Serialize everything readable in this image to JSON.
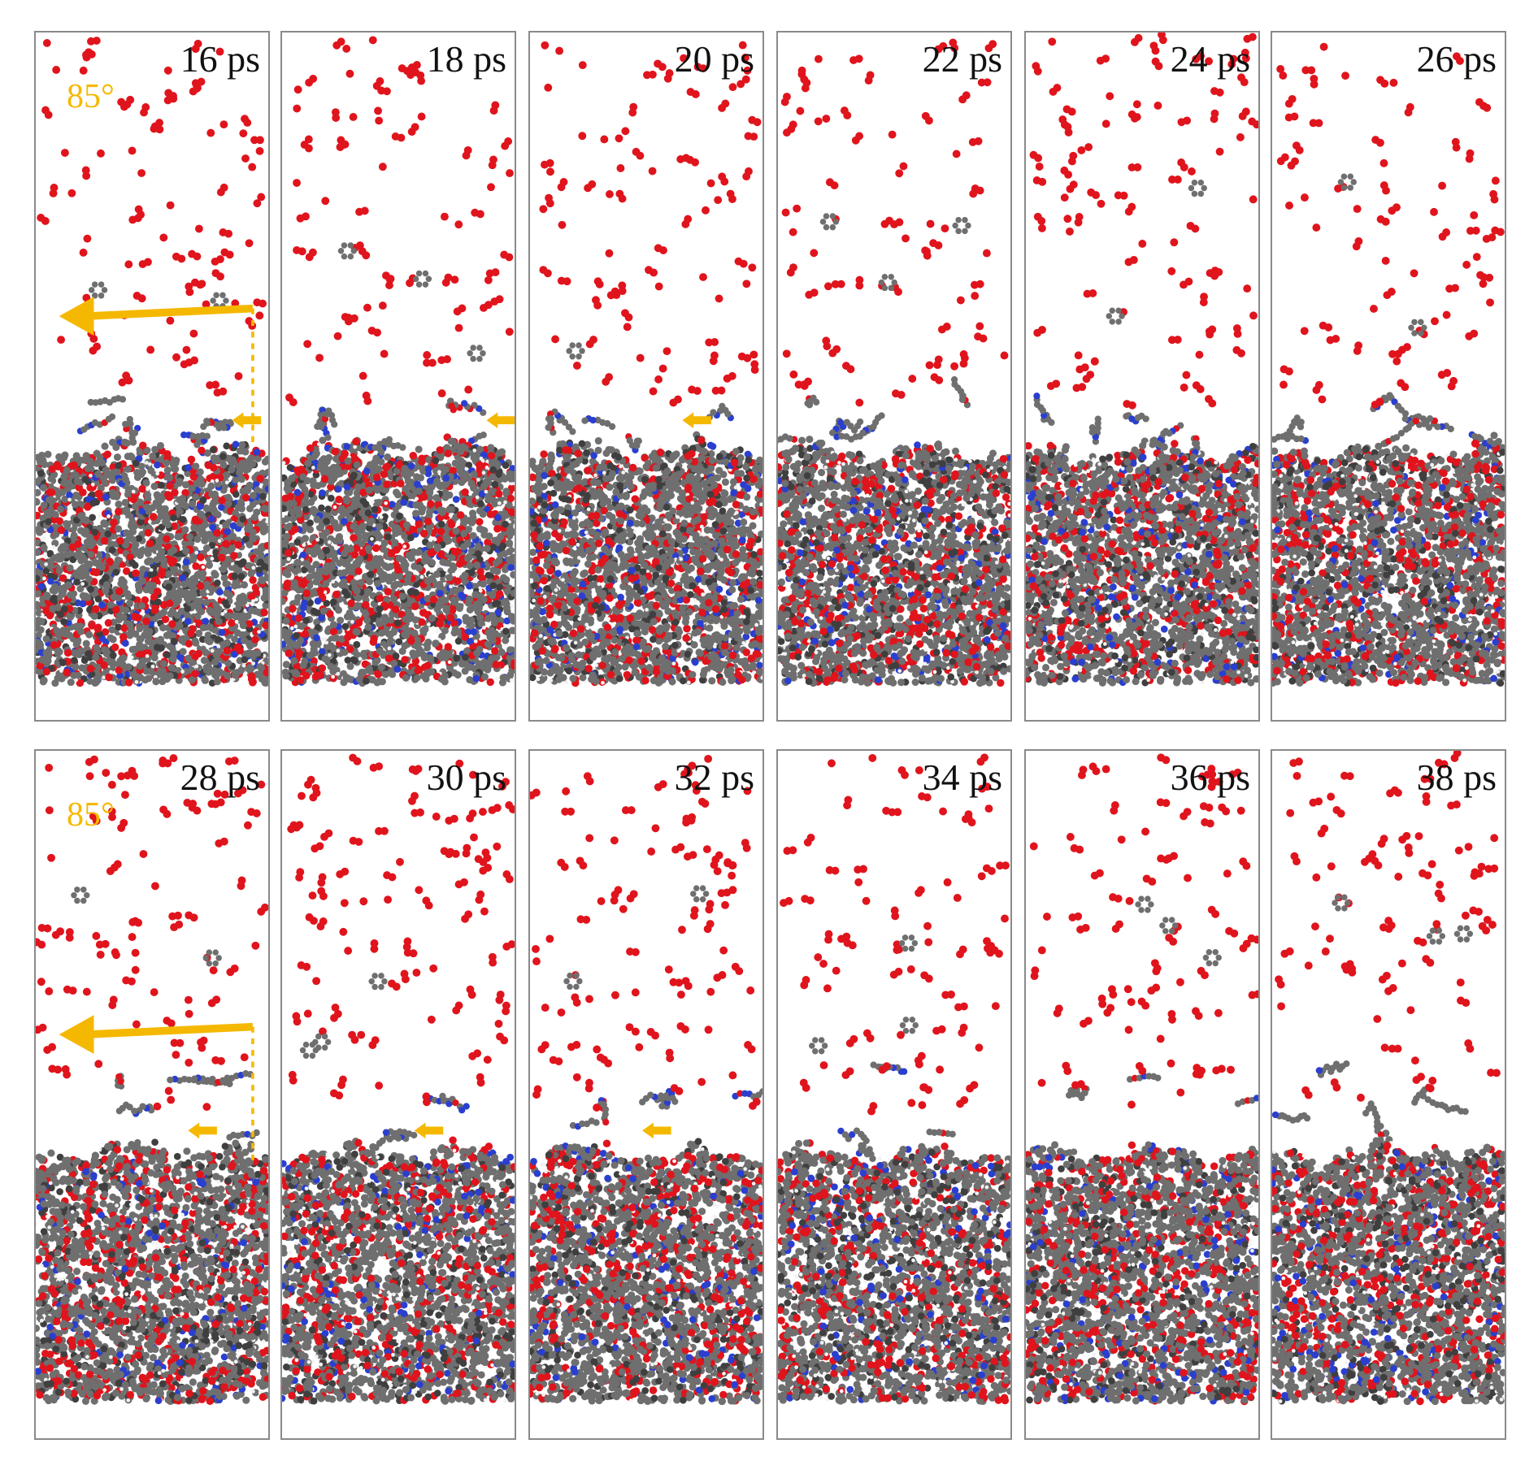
{
  "figure": {
    "rows": [
      {
        "angle_label": "85°",
        "frames": [
          {
            "time_label": "16 ps",
            "ejection_arrow": true
          },
          {
            "time_label": "18 ps",
            "ejection_arrow": true
          },
          {
            "time_label": "20 ps",
            "ejection_arrow": true
          },
          {
            "time_label": "22 ps",
            "ejection_arrow": false
          },
          {
            "time_label": "24 ps",
            "ejection_arrow": false
          },
          {
            "time_label": "26 ps",
            "ejection_arrow": false
          }
        ]
      },
      {
        "angle_label": "85°",
        "frames": [
          {
            "time_label": "28 ps",
            "ejection_arrow": true
          },
          {
            "time_label": "30 ps",
            "ejection_arrow": true
          },
          {
            "time_label": "32 ps",
            "ejection_arrow": true
          },
          {
            "time_label": "34 ps",
            "ejection_arrow": false
          },
          {
            "time_label": "36 ps",
            "ejection_arrow": false
          },
          {
            "time_label": "38 ps",
            "ejection_arrow": false
          }
        ]
      }
    ],
    "colors": {
      "oxygen": "#e0141c",
      "carbon": "#6f6f6f",
      "carbon_dark": "#3f3f3f",
      "nitrogen": "#2a3fcf",
      "hydrogen": "#f2f2f2",
      "arrow": "#f5b800",
      "panel_border": "#8a8a8a"
    }
  }
}
